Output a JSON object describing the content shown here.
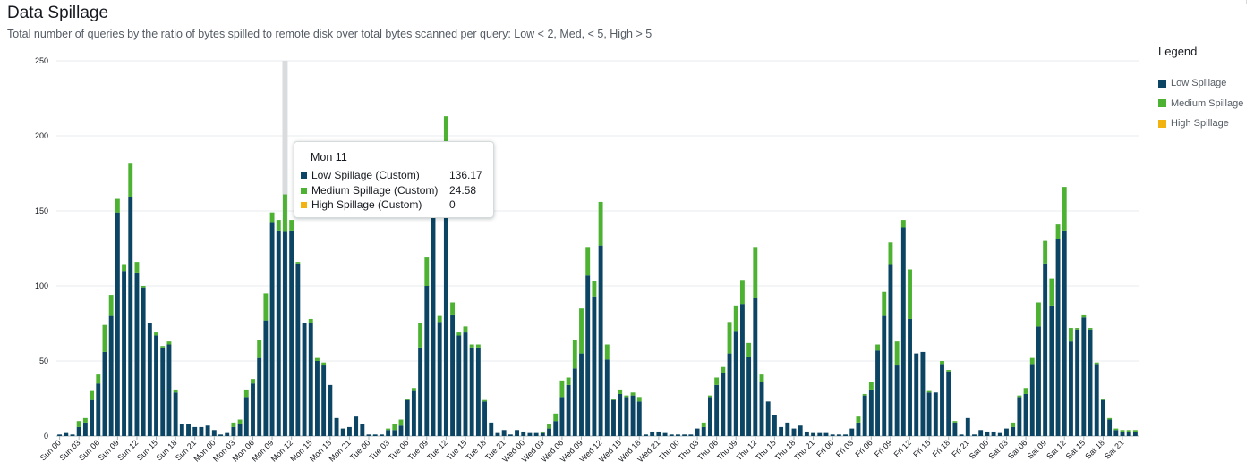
{
  "title": "Data Spillage",
  "subtitle": "Total number of queries by the ratio of bytes spilled to remote disk over total bytes scanned per query: Low < 2, Med, < 5, High > 5",
  "legend": {
    "title": "Legend",
    "items": [
      {
        "label": "Low Spillage",
        "color": "#0b4563"
      },
      {
        "label": "Medium Spillage",
        "color": "#4db232"
      },
      {
        "label": "High Spillage",
        "color": "#f2b20f"
      }
    ]
  },
  "tooltip": {
    "title": "Mon 11",
    "rows": [
      {
        "label": "Low Spillage (Custom)",
        "value": "136.17",
        "color": "#0b4563"
      },
      {
        "label": "Medium Spillage (Custom)",
        "value": "24.58",
        "color": "#4db232"
      },
      {
        "label": "High Spillage (Custom)",
        "value": "0",
        "color": "#f2b20f"
      }
    ]
  },
  "chart_data": {
    "type": "bar",
    "stacked": true,
    "title": "Data Spillage",
    "xlabel": "",
    "ylabel": "",
    "ylim": [
      0,
      250
    ],
    "yticks": [
      0,
      50,
      100,
      150,
      200,
      250
    ],
    "grid": true,
    "legend_position": "right",
    "highlighted_category": "Mon 11",
    "categories": [
      "Sun 00",
      "Sun 01",
      "Sun 02",
      "Sun 03",
      "Sun 04",
      "Sun 05",
      "Sun 06",
      "Sun 07",
      "Sun 08",
      "Sun 09",
      "Sun 10",
      "Sun 11",
      "Sun 12",
      "Sun 13",
      "Sun 14",
      "Sun 15",
      "Sun 16",
      "Sun 17",
      "Sun 18",
      "Sun 19",
      "Sun 20",
      "Sun 21",
      "Sun 22",
      "Sun 23",
      "Mon 00",
      "Mon 01",
      "Mon 02",
      "Mon 03",
      "Mon 04",
      "Mon 05",
      "Mon 06",
      "Mon 07",
      "Mon 08",
      "Mon 09",
      "Mon 10",
      "Mon 11",
      "Mon 12",
      "Mon 13",
      "Mon 14",
      "Mon 15",
      "Mon 16",
      "Mon 17",
      "Mon 18",
      "Mon 19",
      "Mon 20",
      "Mon 21",
      "Mon 22",
      "Mon 23",
      "Tue 00",
      "Tue 01",
      "Tue 02",
      "Tue 03",
      "Tue 04",
      "Tue 05",
      "Tue 06",
      "Tue 07",
      "Tue 08",
      "Tue 09",
      "Tue 10",
      "Tue 11",
      "Tue 12",
      "Tue 13",
      "Tue 14",
      "Tue 15",
      "Tue 16",
      "Tue 17",
      "Tue 18",
      "Tue 19",
      "Tue 20",
      "Tue 21",
      "Tue 22",
      "Tue 23",
      "Wed 00",
      "Wed 01",
      "Wed 02",
      "Wed 03",
      "Wed 04",
      "Wed 05",
      "Wed 06",
      "Wed 07",
      "Wed 08",
      "Wed 09",
      "Wed 10",
      "Wed 11",
      "Wed 12",
      "Wed 13",
      "Wed 14",
      "Wed 15",
      "Wed 16",
      "Wed 17",
      "Wed 18",
      "Wed 19",
      "Wed 20",
      "Wed 21",
      "Wed 22",
      "Wed 23",
      "Thu 00",
      "Thu 01",
      "Thu 02",
      "Thu 03",
      "Thu 04",
      "Thu 05",
      "Thu 06",
      "Thu 07",
      "Thu 08",
      "Thu 09",
      "Thu 10",
      "Thu 11",
      "Thu 12",
      "Thu 13",
      "Thu 14",
      "Thu 15",
      "Thu 16",
      "Thu 17",
      "Thu 18",
      "Thu 19",
      "Thu 20",
      "Thu 21",
      "Thu 22",
      "Thu 23",
      "Fri 00",
      "Fri 01",
      "Fri 02",
      "Fri 03",
      "Fri 04",
      "Fri 05",
      "Fri 06",
      "Fri 07",
      "Fri 08",
      "Fri 09",
      "Fri 10",
      "Fri 11",
      "Fri 12",
      "Fri 13",
      "Fri 14",
      "Fri 15",
      "Fri 16",
      "Fri 17",
      "Fri 18",
      "Fri 19",
      "Fri 20",
      "Fri 21",
      "Fri 22",
      "Fri 23",
      "Sat 00",
      "Sat 01",
      "Sat 02",
      "Sat 03",
      "Sat 04",
      "Sat 05",
      "Sat 06",
      "Sat 07",
      "Sat 08",
      "Sat 09",
      "Sat 10",
      "Sat 11",
      "Sat 12",
      "Sat 13",
      "Sat 14",
      "Sat 15",
      "Sat 16",
      "Sat 17",
      "Sat 18",
      "Sat 19",
      "Sat 20",
      "Sat 21",
      "Sat 22",
      "Sat 23"
    ],
    "tick_labels": [
      "Sun 00",
      "Sun 03",
      "Sun 06",
      "Sun 09",
      "Sun 12",
      "Sun 15",
      "Sun 18",
      "Sun 21",
      "Mon 00",
      "Mon 03",
      "Mon 06",
      "Mon 09",
      "Mon 12",
      "Mon 15",
      "Mon 18",
      "Mon 21",
      "Tue 00",
      "Tue 03",
      "Tue 06",
      "Tue 09",
      "Tue 12",
      "Tue 15",
      "Tue 18",
      "Tue 21",
      "Wed 00",
      "Wed 03",
      "Wed 06",
      "Wed 09",
      "Wed 12",
      "Wed 15",
      "Wed 18",
      "Wed 21",
      "Thu 00",
      "Thu 03",
      "Thu 06",
      "Thu 09",
      "Thu 12",
      "Thu 15",
      "Thu 18",
      "Thu 21",
      "Fri 00",
      "Fri 03",
      "Fri 06",
      "Fri 09",
      "Fri 12",
      "Fri 15",
      "Fri 18",
      "Fri 21",
      "Sat 00",
      "Sat 03",
      "Sat 06",
      "Sat 09",
      "Sat 12",
      "Sat 15",
      "Sat 18",
      "Sat 21"
    ],
    "series": [
      {
        "name": "Low Spillage",
        "color": "#0b4563",
        "values": [
          1,
          2,
          1,
          6,
          9,
          24,
          35,
          56,
          80,
          149,
          110,
          159,
          109,
          99,
          75,
          67,
          59,
          61,
          29,
          8,
          8,
          6,
          6,
          7,
          4,
          1,
          2,
          6,
          8,
          26,
          35,
          52,
          77,
          142,
          137,
          136,
          137,
          115,
          75,
          75,
          50,
          47,
          34,
          12,
          5,
          6,
          13,
          8,
          1,
          1,
          1,
          4,
          4,
          7,
          24,
          30,
          59,
          100,
          147,
          76,
          155,
          81,
          67,
          69,
          59,
          59,
          23,
          9,
          2,
          4,
          1,
          4,
          3,
          2,
          2,
          2,
          5,
          10,
          26,
          34,
          45,
          55,
          107,
          93,
          127,
          51,
          24,
          28,
          26,
          27,
          23,
          1,
          3,
          3,
          2,
          1,
          1,
          1,
          1,
          5,
          6,
          26,
          34,
          42,
          55,
          70,
          88,
          53,
          92,
          36,
          23,
          14,
          6,
          9,
          5,
          7,
          3,
          2,
          2,
          2,
          1,
          1,
          1,
          5,
          9,
          27,
          31,
          57,
          80,
          114,
          47,
          139,
          78,
          55,
          56,
          29,
          29,
          48,
          43,
          9,
          1,
          12,
          1,
          4,
          3,
          3,
          2,
          5,
          6,
          26,
          28,
          48,
          73,
          115,
          87,
          131,
          137,
          63,
          71,
          79,
          71,
          48,
          24,
          11,
          4,
          3,
          3,
          3
        ]
      },
      {
        "name": "Medium Spillage",
        "color": "#4db232",
        "values": [
          0,
          0,
          0,
          4,
          3,
          6,
          6,
          18,
          14,
          9,
          4,
          23,
          7,
          1,
          0,
          2,
          1,
          2,
          2,
          0,
          0,
          0,
          0,
          0,
          0,
          0,
          0,
          3,
          3,
          5,
          3,
          12,
          18,
          7,
          7,
          25,
          7,
          1,
          0,
          3,
          2,
          2,
          0,
          0,
          0,
          0,
          0,
          0,
          0,
          0,
          0,
          1,
          4,
          4,
          1,
          2,
          16,
          19,
          0,
          4,
          58,
          8,
          2,
          4,
          2,
          2,
          1,
          0,
          0,
          0,
          0,
          0,
          0,
          0,
          0,
          1,
          3,
          5,
          11,
          5,
          19,
          30,
          19,
          10,
          29,
          10,
          1,
          3,
          1,
          2,
          3,
          0,
          0,
          0,
          0,
          0,
          0,
          0,
          0,
          0,
          3,
          1,
          5,
          4,
          21,
          17,
          16,
          9,
          34,
          5,
          0,
          0,
          0,
          0,
          0,
          0,
          0,
          0,
          0,
          0,
          0,
          0,
          0,
          0,
          4,
          1,
          5,
          4,
          16,
          15,
          16,
          5,
          33,
          0,
          0,
          1,
          0,
          2,
          1,
          1,
          0,
          0,
          0,
          0,
          0,
          0,
          0,
          0,
          3,
          1,
          4,
          4,
          16,
          15,
          18,
          10,
          29,
          9,
          1,
          2,
          1,
          1,
          1,
          1,
          1,
          1,
          1,
          1
        ]
      },
      {
        "name": "High Spillage",
        "color": "#f2b20f",
        "values": [
          0,
          0,
          0,
          0,
          0,
          0,
          0,
          0,
          0,
          0,
          0,
          0,
          0,
          0,
          0,
          0,
          0,
          0,
          0,
          0,
          0,
          0,
          0,
          0,
          0,
          0,
          0,
          0,
          0,
          0,
          0,
          0,
          0,
          0,
          0,
          0,
          0,
          0,
          0,
          0,
          0,
          0,
          0,
          0,
          0,
          0,
          0,
          0,
          0,
          0,
          0,
          0,
          0,
          0,
          0,
          0,
          0,
          0,
          0,
          0,
          0,
          0,
          0,
          0,
          0,
          0,
          0,
          0,
          0,
          0,
          0,
          0,
          0,
          0,
          0,
          0,
          0,
          0,
          0,
          0,
          0,
          0,
          0,
          0,
          0,
          0,
          0,
          0,
          0,
          0,
          0,
          0,
          0,
          0,
          0,
          0,
          0,
          0,
          0,
          0,
          0,
          0,
          0,
          0,
          0,
          0,
          0,
          0,
          0,
          0,
          0,
          0,
          0,
          0,
          0,
          0,
          0,
          0,
          0,
          0,
          0,
          0,
          0,
          0,
          0,
          0,
          0,
          0,
          0,
          0,
          0,
          0,
          0,
          0,
          0,
          0,
          0,
          0,
          0,
          0,
          0,
          0,
          0,
          0,
          0,
          0,
          0,
          0,
          0,
          0,
          0,
          0,
          0,
          0,
          0,
          0,
          0,
          0,
          0,
          0,
          0,
          0,
          0,
          0,
          0,
          0,
          0,
          0
        ]
      }
    ]
  }
}
